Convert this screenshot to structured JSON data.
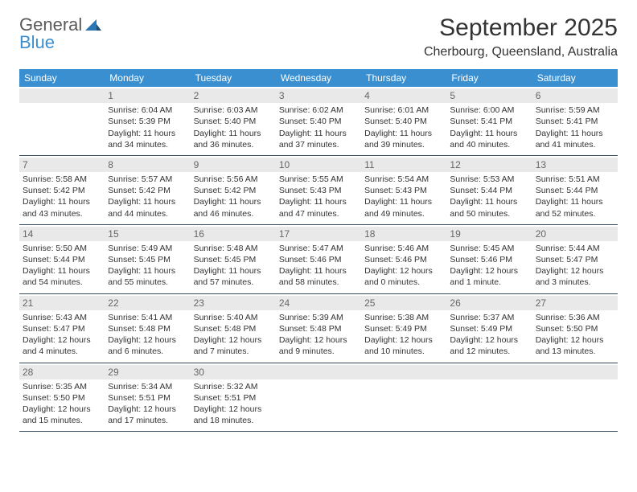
{
  "logo": {
    "text1": "General",
    "text2": "Blue"
  },
  "title": "September 2025",
  "location": "Cherbourg, Queensland, Australia",
  "theme": {
    "header_bg": "#3a8fd0",
    "header_fg": "#ffffff",
    "daynum_bg": "#e9e9e9",
    "daynum_fg": "#666666",
    "border_color": "#34495e",
    "text_color": "#333333",
    "background": "#ffffff"
  },
  "calendar": {
    "daysOfWeek": [
      "Sunday",
      "Monday",
      "Tuesday",
      "Wednesday",
      "Thursday",
      "Friday",
      "Saturday"
    ],
    "leadingBlanks": 1,
    "trailingBlanks": 4,
    "fontSize_day": 10.5,
    "fontSize_dow": 12,
    "fontSize_title": 30,
    "fontSize_location": 16,
    "days": [
      {
        "n": 1,
        "sr": "6:04 AM",
        "ss": "5:39 PM",
        "dl": "11 hours and 34 minutes."
      },
      {
        "n": 2,
        "sr": "6:03 AM",
        "ss": "5:40 PM",
        "dl": "11 hours and 36 minutes."
      },
      {
        "n": 3,
        "sr": "6:02 AM",
        "ss": "5:40 PM",
        "dl": "11 hours and 37 minutes."
      },
      {
        "n": 4,
        "sr": "6:01 AM",
        "ss": "5:40 PM",
        "dl": "11 hours and 39 minutes."
      },
      {
        "n": 5,
        "sr": "6:00 AM",
        "ss": "5:41 PM",
        "dl": "11 hours and 40 minutes."
      },
      {
        "n": 6,
        "sr": "5:59 AM",
        "ss": "5:41 PM",
        "dl": "11 hours and 41 minutes."
      },
      {
        "n": 7,
        "sr": "5:58 AM",
        "ss": "5:42 PM",
        "dl": "11 hours and 43 minutes."
      },
      {
        "n": 8,
        "sr": "5:57 AM",
        "ss": "5:42 PM",
        "dl": "11 hours and 44 minutes."
      },
      {
        "n": 9,
        "sr": "5:56 AM",
        "ss": "5:42 PM",
        "dl": "11 hours and 46 minutes."
      },
      {
        "n": 10,
        "sr": "5:55 AM",
        "ss": "5:43 PM",
        "dl": "11 hours and 47 minutes."
      },
      {
        "n": 11,
        "sr": "5:54 AM",
        "ss": "5:43 PM",
        "dl": "11 hours and 49 minutes."
      },
      {
        "n": 12,
        "sr": "5:53 AM",
        "ss": "5:44 PM",
        "dl": "11 hours and 50 minutes."
      },
      {
        "n": 13,
        "sr": "5:51 AM",
        "ss": "5:44 PM",
        "dl": "11 hours and 52 minutes."
      },
      {
        "n": 14,
        "sr": "5:50 AM",
        "ss": "5:44 PM",
        "dl": "11 hours and 54 minutes."
      },
      {
        "n": 15,
        "sr": "5:49 AM",
        "ss": "5:45 PM",
        "dl": "11 hours and 55 minutes."
      },
      {
        "n": 16,
        "sr": "5:48 AM",
        "ss": "5:45 PM",
        "dl": "11 hours and 57 minutes."
      },
      {
        "n": 17,
        "sr": "5:47 AM",
        "ss": "5:46 PM",
        "dl": "11 hours and 58 minutes."
      },
      {
        "n": 18,
        "sr": "5:46 AM",
        "ss": "5:46 PM",
        "dl": "12 hours and 0 minutes."
      },
      {
        "n": 19,
        "sr": "5:45 AM",
        "ss": "5:46 PM",
        "dl": "12 hours and 1 minute."
      },
      {
        "n": 20,
        "sr": "5:44 AM",
        "ss": "5:47 PM",
        "dl": "12 hours and 3 minutes."
      },
      {
        "n": 21,
        "sr": "5:43 AM",
        "ss": "5:47 PM",
        "dl": "12 hours and 4 minutes."
      },
      {
        "n": 22,
        "sr": "5:41 AM",
        "ss": "5:48 PM",
        "dl": "12 hours and 6 minutes."
      },
      {
        "n": 23,
        "sr": "5:40 AM",
        "ss": "5:48 PM",
        "dl": "12 hours and 7 minutes."
      },
      {
        "n": 24,
        "sr": "5:39 AM",
        "ss": "5:48 PM",
        "dl": "12 hours and 9 minutes."
      },
      {
        "n": 25,
        "sr": "5:38 AM",
        "ss": "5:49 PM",
        "dl": "12 hours and 10 minutes."
      },
      {
        "n": 26,
        "sr": "5:37 AM",
        "ss": "5:49 PM",
        "dl": "12 hours and 12 minutes."
      },
      {
        "n": 27,
        "sr": "5:36 AM",
        "ss": "5:50 PM",
        "dl": "12 hours and 13 minutes."
      },
      {
        "n": 28,
        "sr": "5:35 AM",
        "ss": "5:50 PM",
        "dl": "12 hours and 15 minutes."
      },
      {
        "n": 29,
        "sr": "5:34 AM",
        "ss": "5:51 PM",
        "dl": "12 hours and 17 minutes."
      },
      {
        "n": 30,
        "sr": "5:32 AM",
        "ss": "5:51 PM",
        "dl": "12 hours and 18 minutes."
      }
    ],
    "labels": {
      "sunrise": "Sunrise:",
      "sunset": "Sunset:",
      "daylight": "Daylight:"
    }
  }
}
